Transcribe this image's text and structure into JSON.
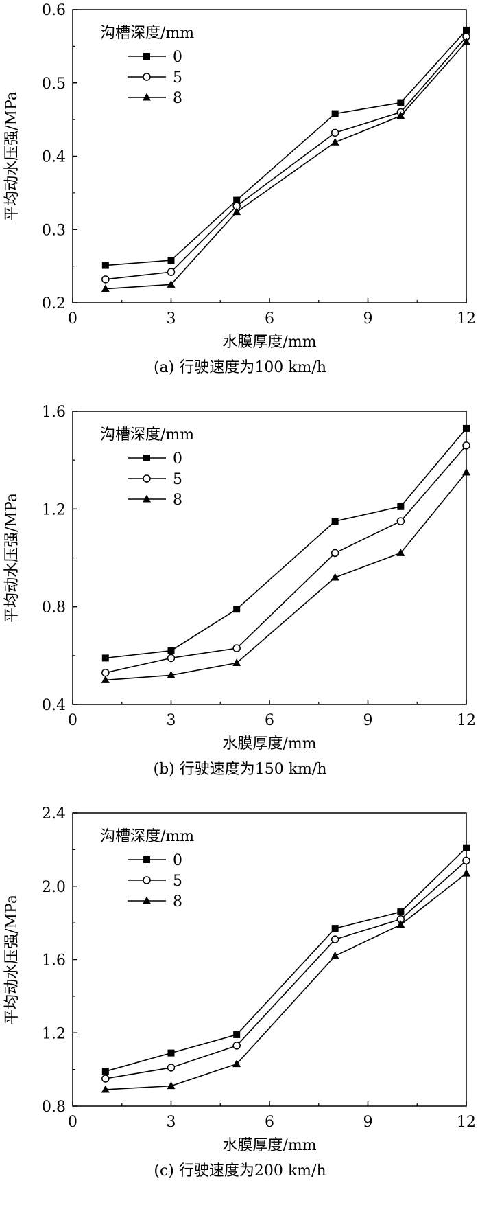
{
  "charts": [
    {
      "caption": "(a) 行驶速度为100 km/h",
      "chart_data": {
        "type": "line",
        "xlabel": "水膜厚度/mm",
        "ylabel": "平均动水压强/MPa",
        "xlim": [
          0,
          12
        ],
        "ylim": [
          0.2,
          0.6
        ],
        "xticks": [
          "0",
          "3",
          "6",
          "9",
          "12"
        ],
        "yticks": [
          "0.2",
          "0.3",
          "0.4",
          "0.5",
          "0.6"
        ],
        "legend_title": "沟槽深度/mm",
        "legend_position": "top-left",
        "grid": false,
        "x": [
          1,
          3,
          5,
          8,
          10,
          12
        ],
        "series": [
          {
            "name": "0",
            "marker": "square-filled",
            "values": [
              0.251,
              0.258,
              0.34,
              0.458,
              0.473,
              0.572
            ]
          },
          {
            "name": "5",
            "marker": "circle-open",
            "values": [
              0.232,
              0.242,
              0.332,
              0.432,
              0.46,
              0.563
            ]
          },
          {
            "name": "8",
            "marker": "triangle-filled",
            "values": [
              0.219,
              0.225,
              0.324,
              0.419,
              0.455,
              0.556
            ]
          }
        ]
      }
    },
    {
      "caption": "(b) 行驶速度为150 km/h",
      "chart_data": {
        "type": "line",
        "xlabel": "水膜厚度/mm",
        "ylabel": "平均动水压强/MPa",
        "xlim": [
          0,
          12
        ],
        "ylim": [
          0.4,
          1.6
        ],
        "xticks": [
          "0",
          "3",
          "6",
          "9",
          "12"
        ],
        "yticks": [
          "0.4",
          "0.8",
          "1.2",
          "1.6"
        ],
        "legend_title": "沟槽深度/mm",
        "legend_position": "top-left",
        "grid": false,
        "x": [
          1,
          3,
          5,
          8,
          10,
          12
        ],
        "series": [
          {
            "name": "0",
            "marker": "square-filled",
            "values": [
              0.59,
              0.62,
              0.79,
              1.15,
              1.21,
              1.53
            ]
          },
          {
            "name": "5",
            "marker": "circle-open",
            "values": [
              0.53,
              0.59,
              0.63,
              1.02,
              1.15,
              1.46
            ]
          },
          {
            "name": "8",
            "marker": "triangle-filled",
            "values": [
              0.5,
              0.52,
              0.57,
              0.92,
              1.02,
              1.35
            ]
          }
        ]
      }
    },
    {
      "caption": "(c) 行驶速度为200 km/h",
      "chart_data": {
        "type": "line",
        "xlabel": "水膜厚度/mm",
        "ylabel": "平均动水压强/MPa",
        "xlim": [
          0,
          12
        ],
        "ylim": [
          0.8,
          2.4
        ],
        "xticks": [
          "0",
          "3",
          "6",
          "9",
          "12"
        ],
        "yticks": [
          "0.8",
          "1.2",
          "1.6",
          "2.0",
          "2.4"
        ],
        "legend_title": "沟槽深度/mm",
        "legend_position": "top-left",
        "grid": false,
        "x": [
          1,
          3,
          5,
          8,
          10,
          12
        ],
        "series": [
          {
            "name": "0",
            "marker": "square-filled",
            "values": [
              0.99,
              1.09,
              1.19,
              1.77,
              1.86,
              2.21
            ]
          },
          {
            "name": "5",
            "marker": "circle-open",
            "values": [
              0.95,
              1.01,
              1.13,
              1.71,
              1.82,
              2.14
            ]
          },
          {
            "name": "8",
            "marker": "triangle-filled",
            "values": [
              0.89,
              0.91,
              1.03,
              1.62,
              1.79,
              2.07
            ]
          }
        ]
      }
    }
  ]
}
